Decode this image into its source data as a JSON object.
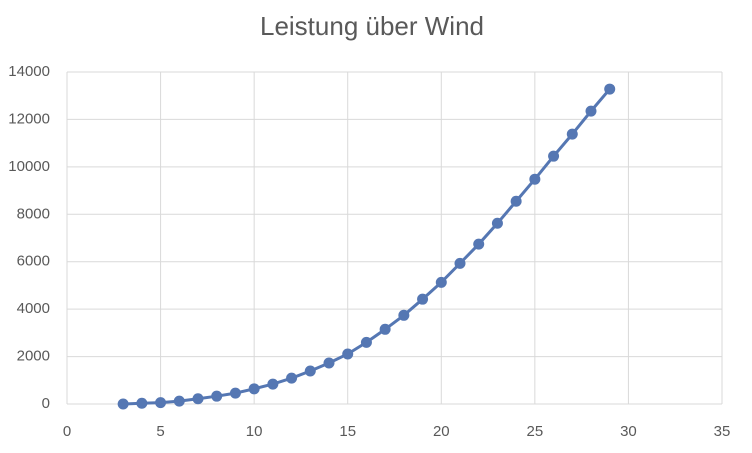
{
  "chart_data": {
    "type": "line",
    "title": "Leistung über Wind",
    "x": [
      3,
      4,
      5,
      6,
      7,
      8,
      9,
      10,
      11,
      12,
      13,
      14,
      15,
      16,
      17,
      18,
      19,
      20,
      21,
      22,
      23,
      24,
      25,
      26,
      27,
      28,
      29
    ],
    "series": [
      {
        "color": "#5577b3",
        "values": [
          0,
          30,
          60,
          120,
          220,
          330,
          460,
          640,
          840,
          1090,
          1390,
          1730,
          2110,
          2600,
          3150,
          3740,
          4420,
          5130,
          5930,
          6740,
          7620,
          8550,
          9480,
          10450,
          11380,
          12350,
          13280
        ]
      }
    ],
    "xlim": [
      0,
      35
    ],
    "xticks": [
      0,
      5,
      10,
      15,
      20,
      25,
      30,
      35
    ],
    "ylim": [
      0,
      14000
    ],
    "yticks": [
      0,
      2000,
      4000,
      6000,
      8000,
      10000,
      12000,
      14000
    ],
    "grid": true
  }
}
